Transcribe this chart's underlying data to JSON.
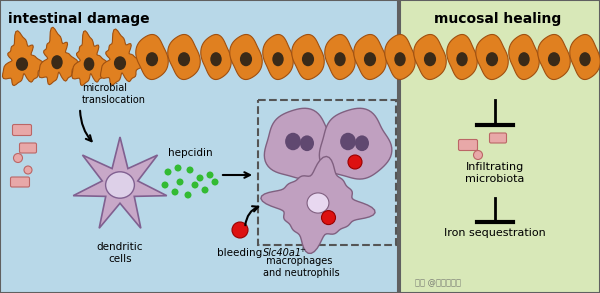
{
  "bg_left_color": "#b8d8e8",
  "bg_right_color": "#d8e8b8",
  "cell_orange": "#e08020",
  "cell_orange_edge": "#a05010",
  "cell_dark": "#3a2a18",
  "green_dot": "#33bb33",
  "red_cell": "#dd1111",
  "pink_bact_fill": "#e8a8a8",
  "pink_bact_edge": "#bb6666",
  "purple_cell": "#c0a0c0",
  "purple_cell_edge": "#806080",
  "dark_purple_nuc": "#604870",
  "light_nuc": "#e8d8f0",
  "title_left": "intestinal damage",
  "title_right": "mucosal healing",
  "label_microbial": "microbial\ntranslocation",
  "label_hepcidin": "hepcidin",
  "label_dendritic": "dendritic\ncells",
  "label_bleeding": "bleeding",
  "label_slc": "Slc40a1",
  "label_slc_sup": "+",
  "label_mac": " macrophages\nand neutrophils",
  "label_infiltrating": "Infiltrating\nmicrobiota",
  "label_iron": "Iron sequestration",
  "border_color": "#606060",
  "watermark": "知乎 @文献拆解工",
  "figsize": [
    6.0,
    2.93
  ],
  "dpi": 100
}
